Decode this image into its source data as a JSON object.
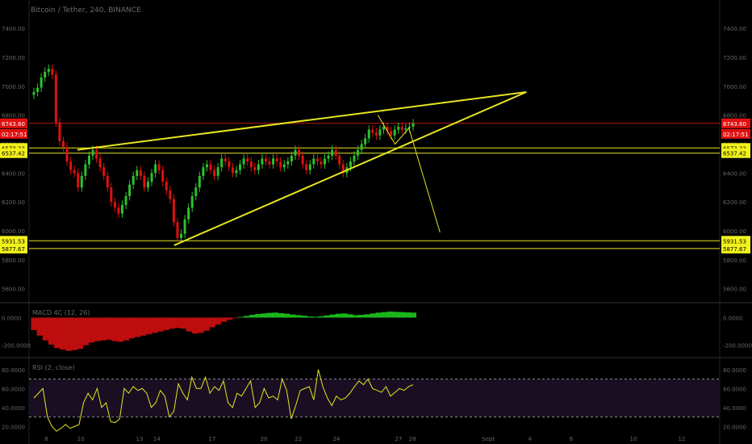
{
  "header": {
    "title": "Bitcoin / Tether, 240, BINANCE"
  },
  "colors": {
    "up": "#2cc22c",
    "down": "#e01010",
    "pattern": "#e6e620",
    "rsi": "#e6e620",
    "macdUp": "#1ec81e",
    "macdDown": "#d01010"
  },
  "chart_data": [
    {
      "type": "candlestick",
      "title": "Bitcoin / Tether, 240, BINANCE",
      "y_ticks": [
        "7400.00",
        "7200.00",
        "7000.00",
        "6800.00",
        "6600.00",
        "6400.00",
        "6200.00",
        "6000.00",
        "5800.00",
        "5600.00"
      ],
      "ylim": [
        5520,
        7440
      ],
      "x_tick_labels": [
        "8",
        "10",
        "13",
        "14",
        "17",
        "20",
        "22",
        "24",
        "27",
        "28",
        "Sept",
        "4",
        "6",
        "10",
        "12"
      ],
      "price_labels": [
        {
          "text": "6743.60",
          "style": "red"
        },
        {
          "text": "02:17:51",
          "style": "red"
        },
        {
          "text": "6573.33",
          "style": "yellow"
        },
        {
          "text": "6537.42",
          "style": "yellow"
        },
        {
          "text": "5931.53",
          "style": "yellow"
        },
        {
          "text": "5877.67",
          "style": "yellow"
        }
      ],
      "horizontal_levels": [
        6743.6,
        6573.33,
        6537.42,
        5931.53,
        5877.67
      ],
      "closes": [
        6960,
        6990,
        7060,
        7100,
        7120,
        7080,
        6750,
        6620,
        6580,
        6480,
        6420,
        6400,
        6300,
        6380,
        6460,
        6520,
        6560,
        6500,
        6440,
        6380,
        6300,
        6200,
        6160,
        6120,
        6180,
        6240,
        6320,
        6380,
        6420,
        6380,
        6300,
        6340,
        6400,
        6460,
        6420,
        6340,
        6280,
        6220,
        6060,
        5950,
        5980,
        6080,
        6160,
        6240,
        6300,
        6380,
        6440,
        6460,
        6420,
        6380,
        6440,
        6500,
        6480,
        6440,
        6400,
        6420,
        6460,
        6500,
        6480,
        6440,
        6420,
        6460,
        6500,
        6480,
        6460,
        6500,
        6480,
        6440,
        6460,
        6480,
        6520,
        6560,
        6520,
        6460,
        6420,
        6460,
        6500,
        6480,
        6460,
        6500,
        6520,
        6560,
        6520,
        6460,
        6400,
        6440,
        6480,
        6520,
        6560,
        6600,
        6640,
        6700,
        6680,
        6660,
        6700,
        6720,
        6690,
        6660,
        6700,
        6720,
        6700,
        6710,
        6720,
        6743
      ],
      "pattern_lines": [
        {
          "from": [
            0.07,
            6560
          ],
          "to": [
            0.72,
            6960
          ]
        },
        {
          "from": [
            0.21,
            5900
          ],
          "to": [
            0.72,
            6960
          ]
        }
      ],
      "projection": [
        [
          0.505,
          6800
        ],
        [
          0.53,
          6600
        ],
        [
          0.55,
          6710
        ],
        [
          0.595,
          5990
        ]
      ]
    },
    {
      "type": "area",
      "title": "MACD 4C (12, 26)",
      "y_ticks": [
        "0.0000",
        "-200.0000"
      ],
      "ylim": [
        -260,
        90
      ],
      "values": [
        -90,
        -130,
        -165,
        -195,
        -220,
        -230,
        -240,
        -235,
        -225,
        -200,
        -180,
        -170,
        -165,
        -160,
        -170,
        -175,
        -165,
        -150,
        -140,
        -130,
        -120,
        -110,
        -100,
        -90,
        -80,
        -75,
        -80,
        -100,
        -115,
        -110,
        -95,
        -70,
        -50,
        -30,
        -15,
        -5,
        5,
        12,
        20,
        26,
        30,
        34,
        36,
        32,
        28,
        22,
        18,
        14,
        8,
        6,
        10,
        16,
        22,
        28,
        30,
        24,
        18,
        20,
        24,
        30,
        36,
        40,
        44,
        42,
        40,
        38,
        36
      ]
    },
    {
      "type": "line",
      "title": "RSI (2, close)",
      "y_ticks": [
        "80.0000",
        "60.0000",
        "40.0000",
        "20.0000"
      ],
      "ylim": [
        10,
        90
      ],
      "bands": [
        70,
        30
      ],
      "values": [
        50,
        55,
        60,
        30,
        20,
        15,
        18,
        22,
        18,
        20,
        22,
        45,
        55,
        48,
        60,
        40,
        45,
        25,
        24,
        28,
        60,
        55,
        62,
        58,
        60,
        55,
        40,
        45,
        58,
        52,
        30,
        36,
        65,
        55,
        48,
        72,
        60,
        60,
        72,
        55,
        62,
        58,
        68,
        45,
        40,
        55,
        52,
        60,
        68,
        40,
        45,
        60,
        50,
        52,
        48,
        70,
        58,
        28,
        42,
        58,
        60,
        62,
        48,
        80,
        62,
        50,
        42,
        52,
        48,
        50,
        55,
        62,
        68,
        64,
        70,
        60,
        58,
        56,
        62,
        52,
        56,
        60,
        58,
        62,
        64
      ]
    }
  ]
}
